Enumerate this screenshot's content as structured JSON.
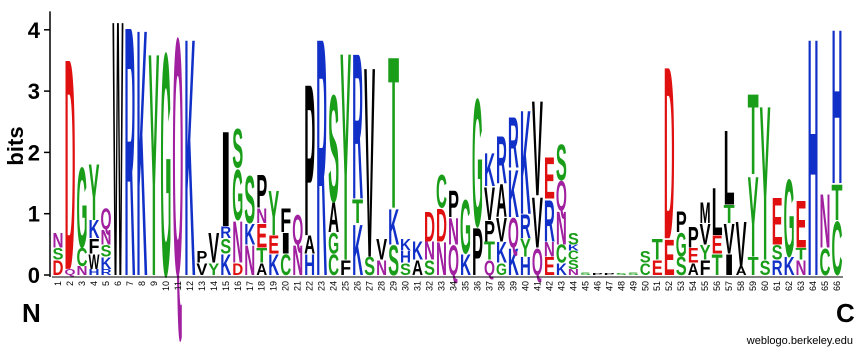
{
  "chart_data": {
    "type": "sequence-logo",
    "ylabel": "bits",
    "ylim": [
      0,
      4.3
    ],
    "yticks": [
      "0",
      "1",
      "2",
      "3",
      "4"
    ],
    "n_terminus": "N",
    "c_terminus": "C",
    "credit": "weblogo.berkeley.edu",
    "positions": [
      "1",
      "2",
      "3",
      "4",
      "5",
      "6",
      "7",
      "8",
      "9",
      "10",
      "11",
      "12",
      "13",
      "14",
      "15",
      "16",
      "17",
      "18",
      "19",
      "20",
      "21",
      "22",
      "23",
      "24",
      "25",
      "26",
      "27",
      "28",
      "29",
      "30",
      "31",
      "32",
      "33",
      "34",
      "35",
      "36",
      "37",
      "38",
      "39",
      "40",
      "41",
      "42",
      "43",
      "44",
      "45",
      "46",
      "47",
      "48",
      "49",
      "50",
      "51",
      "52",
      "53",
      "54",
      "55",
      "56",
      "57",
      "58",
      "59",
      "60",
      "61",
      "62",
      "63",
      "64",
      "65",
      "66"
    ],
    "colors": {
      "A": "#000000",
      "F": "#000000",
      "I": "#000000",
      "L": "#000000",
      "M": "#000000",
      "P": "#000000",
      "V": "#000000",
      "W": "#000000",
      "C": "#1a9e1a",
      "G": "#1a9e1a",
      "S": "#1a9e1a",
      "T": "#1a9e1a",
      "Y": "#1a9e1a",
      "N": "#a020a0",
      "Q": "#a020a0",
      "D": "#e01010",
      "E": "#e01010",
      "H": "#1030c8",
      "K": "#1030c8",
      "R": "#1030c8"
    },
    "stacks": [
      [
        [
          "D",
          0.25
        ],
        [
          "S",
          0.2
        ],
        [
          "N",
          0.25
        ]
      ],
      [
        [
          "Q",
          0.1
        ],
        [
          "D",
          3.55
        ]
      ],
      [
        [
          "N",
          0.15
        ],
        [
          "C",
          0.3
        ],
        [
          "G",
          1.35
        ]
      ],
      [
        [
          "H",
          0.1
        ],
        [
          "W",
          0.25
        ],
        [
          "F",
          0.25
        ],
        [
          "K",
          0.3
        ],
        [
          "Y",
          0.95
        ]
      ],
      [
        [
          "R",
          0.1
        ],
        [
          "K",
          0.2
        ],
        [
          "S",
          0.2
        ],
        [
          "N",
          0.25
        ],
        [
          "Q",
          0.35
        ]
      ],
      [
        [
          "W",
          4.3
        ]
      ],
      [
        [
          "R",
          4.2
        ]
      ],
      [
        [
          "K",
          4.15
        ]
      ],
      [
        [
          "Y",
          3.75
        ]
      ],
      [
        [
          "G",
          3.75
        ]
      ],
      [
        [
          "Q",
          4.0
        ]
      ],
      [
        [
          "K",
          4.0
        ]
      ],
      [
        [
          "V",
          0.2
        ],
        [
          "P",
          0.2
        ]
      ],
      [
        [
          "Y",
          0.2
        ],
        [
          "V",
          0.5
        ]
      ],
      [
        [
          "K",
          0.35
        ],
        [
          "S",
          0.25
        ],
        [
          "R",
          0.2
        ],
        [
          "I",
          1.6
        ]
      ],
      [
        [
          "D",
          0.2
        ],
        [
          "N",
          0.7
        ],
        [
          "G",
          0.85
        ],
        [
          "S",
          0.65
        ]
      ],
      [
        [
          "N",
          0.5
        ],
        [
          "K",
          0.35
        ],
        [
          "S",
          0.8
        ]
      ],
      [
        [
          "A",
          0.2
        ],
        [
          "T",
          0.25
        ],
        [
          "E",
          0.4
        ],
        [
          "N",
          0.25
        ],
        [
          "P",
          0.55
        ]
      ],
      [
        [
          "K",
          0.35
        ],
        [
          "E",
          0.3
        ],
        [
          "Y",
          0.75
        ]
      ],
      [
        [
          "C",
          0.35
        ],
        [
          "I",
          0.35
        ],
        [
          "F",
          0.4
        ]
      ],
      [
        [
          "N",
          0.5
        ],
        [
          "Q",
          0.5
        ]
      ],
      [
        [
          "H",
          0.35
        ],
        [
          "A",
          0.3
        ],
        [
          "P",
          2.55
        ]
      ],
      [
        [
          "R",
          4.0
        ]
      ],
      [
        [
          "C",
          0.35
        ],
        [
          "G",
          0.35
        ],
        [
          "A",
          0.5
        ],
        [
          "S",
          1.8
        ]
      ],
      [
        [
          "F",
          0.25
        ],
        [
          "Y",
          3.5
        ]
      ],
      [
        [
          "K",
          0.85
        ],
        [
          "T",
          0.4
        ],
        [
          "R",
          2.45
        ]
      ],
      [
        [
          "S",
          0.3
        ],
        [
          "V",
          3.2
        ]
      ],
      [
        [
          "N",
          0.25
        ],
        [
          "V",
          0.35
        ]
      ],
      [
        [
          "S",
          0.5
        ],
        [
          "K",
          0.6
        ],
        [
          "T",
          2.55
        ]
      ],
      [
        [
          "S",
          0.2
        ],
        [
          "H",
          0.2
        ],
        [
          "K",
          0.2
        ]
      ],
      [
        [
          "A",
          0.25
        ],
        [
          "K",
          0.3
        ]
      ],
      [
        [
          "S",
          0.25
        ],
        [
          "N",
          0.3
        ],
        [
          "D",
          0.5
        ]
      ],
      [
        [
          "N",
          0.55
        ],
        [
          "D",
          0.55
        ],
        [
          "C",
          0.55
        ]
      ],
      [
        [
          "Q",
          0.5
        ],
        [
          "N",
          0.45
        ],
        [
          "P",
          0.45
        ]
      ],
      [
        [
          "K",
          0.35
        ],
        [
          "G",
          0.9
        ]
      ],
      [
        [
          "P",
          0.8
        ],
        [
          "G",
          2.15
        ]
      ],
      [
        [
          "Q",
          0.25
        ],
        [
          "T",
          0.3
        ],
        [
          "P",
          0.35
        ],
        [
          "V",
          0.55
        ],
        [
          "K",
          0.55
        ]
      ],
      [
        [
          "G",
          0.2
        ],
        [
          "K",
          0.35
        ],
        [
          "V",
          0.4
        ],
        [
          "A",
          0.55
        ],
        [
          "R",
          0.8
        ]
      ],
      [
        [
          "K",
          0.45
        ],
        [
          "Q",
          0.5
        ],
        [
          "K",
          0.8
        ],
        [
          "R",
          0.85
        ]
      ],
      [
        [
          "H",
          0.3
        ],
        [
          "Y",
          0.3
        ],
        [
          "R",
          0.4
        ],
        [
          "K",
          1.75
        ]
      ],
      [
        [
          "Q",
          0.45
        ],
        [
          "V",
          0.85
        ],
        [
          "V",
          1.6
        ]
      ],
      [
        [
          "E",
          0.3
        ],
        [
          "N",
          0.25
        ],
        [
          "R",
          0.7
        ],
        [
          "E",
          0.7
        ]
      ],
      [
        [
          "K",
          0.2
        ],
        [
          "C",
          0.3
        ],
        [
          "N",
          0.55
        ],
        [
          "Q",
          0.5
        ],
        [
          "S",
          0.6
        ]
      ],
      [
        [
          "N",
          0.1
        ],
        [
          "S",
          0.15
        ],
        [
          "C",
          0.15
        ],
        [
          "K",
          0.1
        ],
        [
          "S",
          0.2
        ]
      ],
      [
        [
          "S",
          0.04
        ]
      ],
      [
        [
          "P",
          0.03
        ]
      ],
      [
        [
          "P",
          0.03
        ]
      ],
      [
        [
          "S",
          0.03
        ]
      ],
      [
        [
          "S",
          0.04
        ]
      ],
      [
        [
          "C",
          0.2
        ],
        [
          "S",
          0.2
        ]
      ],
      [
        [
          "E",
          0.25
        ],
        [
          "T",
          0.35
        ]
      ],
      [
        [
          "E",
          0.6
        ],
        [
          "D",
          2.9
        ]
      ],
      [
        [
          "S",
          0.3
        ],
        [
          "G",
          0.4
        ],
        [
          "P",
          0.35
        ]
      ],
      [
        [
          "A",
          0.2
        ],
        [
          "E",
          0.25
        ],
        [
          "P",
          0.35
        ]
      ],
      [
        [
          "F",
          0.25
        ],
        [
          "Y",
          0.25
        ],
        [
          "V",
          0.35
        ],
        [
          "M",
          0.35
        ]
      ],
      [
        [
          "T",
          0.35
        ],
        [
          "E",
          0.3
        ],
        [
          "L",
          0.8
        ]
      ],
      [
        [
          "I",
          0.35
        ],
        [
          "V",
          0.5
        ],
        [
          "T",
          0.3
        ],
        [
          "L",
          1.25
        ]
      ],
      [
        [
          "A",
          0.15
        ],
        [
          "V",
          0.75
        ]
      ],
      [
        [
          "T",
          0.3
        ],
        [
          "Y",
          1.35
        ],
        [
          "T",
          1.35
        ]
      ],
      [
        [
          "S",
          0.25
        ],
        [
          "Y",
          2.6
        ]
      ],
      [
        [
          "R",
          0.25
        ],
        [
          "S",
          0.25
        ],
        [
          "E",
          0.8
        ]
      ],
      [
        [
          "K",
          0.3
        ],
        [
          "G",
          1.3
        ]
      ],
      [
        [
          "N",
          0.25
        ],
        [
          "T",
          0.2
        ],
        [
          "E",
          0.8
        ]
      ],
      [
        [
          "H",
          4.0
        ]
      ],
      [
        [
          "C",
          0.45
        ],
        [
          "N",
          0.9
        ]
      ],
      [
        [
          "C",
          0.9
        ],
        [
          "T",
          0.6
        ],
        [
          "H",
          2.6
        ]
      ]
    ]
  }
}
